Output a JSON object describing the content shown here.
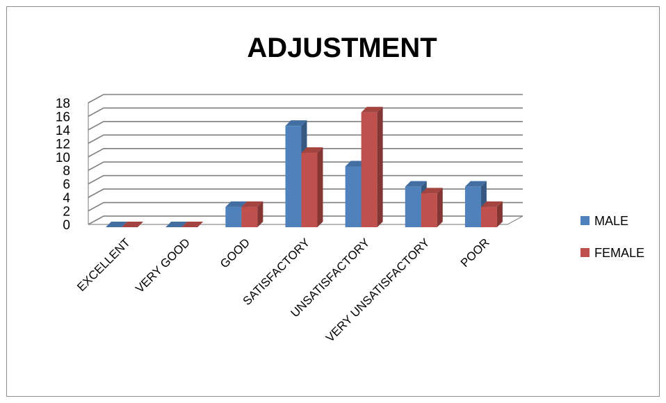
{
  "chart_data": {
    "type": "bar",
    "title": "ADJUSTMENT",
    "xlabel": "",
    "ylabel": "",
    "categories": [
      "EXCELLENT",
      "VERY GOOD",
      "GOOD",
      "SATISFACTORY",
      "UNSATISFACTORY",
      "VERY UNSATISFACTORY",
      "POOR"
    ],
    "series": [
      {
        "name": "MALE",
        "values": [
          0,
          0,
          3,
          15,
          9,
          6,
          6
        ],
        "color": "#4F81BD"
      },
      {
        "name": "FEMALE",
        "values": [
          0,
          0,
          3,
          11,
          17,
          5,
          3
        ],
        "color": "#C0504D"
      }
    ],
    "ylim": [
      0,
      18
    ],
    "yticks": [
      "0",
      "2",
      "4",
      "6",
      "8",
      "10",
      "12",
      "14",
      "16",
      "18"
    ],
    "grid": true,
    "style": "3d-clustered-column",
    "legend_position": "right"
  }
}
